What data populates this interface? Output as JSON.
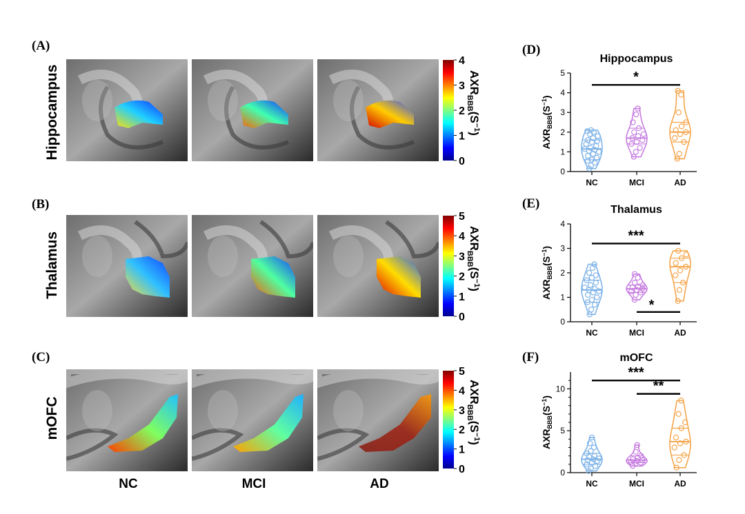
{
  "panels": {
    "A": "(A)",
    "B": "(B)",
    "C": "(C)",
    "D": "(D)",
    "E": "(E)",
    "F": "(F)"
  },
  "rows": [
    "Hippocampus",
    "Thalamus",
    "mOFC"
  ],
  "columns": [
    "NC",
    "MCI",
    "AD"
  ],
  "colorbar": {
    "label": "AXR",
    "subscript": "BBB",
    "unit_open": "(S",
    "unit_sup": "−1",
    "unit_close": ")",
    "colormap": "jet",
    "ticks_A": [
      "0",
      "1",
      "2",
      "3",
      "4"
    ],
    "ticks_B": [
      "0",
      "1",
      "2",
      "3",
      "4",
      "5"
    ],
    "ticks_C": [
      "0",
      "1",
      "2",
      "3",
      "4",
      "5"
    ]
  },
  "colors": {
    "NC": "#7fb3e8",
    "MCI": "#c77ee0",
    "AD": "#f5a54a"
  },
  "chart_data": [
    {
      "type": "violin",
      "title": "Hippocampus",
      "ylabel": "AXR_BBB(S^-1)",
      "categories": [
        "NC",
        "MCI",
        "AD"
      ],
      "ylim": [
        0,
        5
      ],
      "yticks": [
        0,
        1,
        2,
        3,
        4,
        5
      ],
      "series": [
        {
          "name": "NC",
          "median": 1.15,
          "q1": 0.6,
          "q3": 1.6,
          "min": 0.15,
          "max": 2.1,
          "points": [
            0.15,
            0.3,
            0.45,
            0.55,
            0.6,
            0.7,
            0.8,
            0.9,
            1.0,
            1.05,
            1.1,
            1.15,
            1.2,
            1.3,
            1.4,
            1.5,
            1.55,
            1.6,
            1.7,
            1.8,
            1.9,
            2.0,
            2.05,
            2.1
          ]
        },
        {
          "name": "MCI",
          "median": 1.7,
          "q1": 1.4,
          "q3": 2.2,
          "min": 0.75,
          "max": 3.2,
          "points": [
            0.75,
            1.0,
            1.2,
            1.4,
            1.5,
            1.6,
            1.7,
            1.8,
            1.9,
            2.0,
            2.2,
            2.5,
            2.9,
            3.2
          ]
        },
        {
          "name": "AD",
          "median": 2.0,
          "q1": 1.5,
          "q3": 2.5,
          "min": 0.65,
          "max": 4.1,
          "points": [
            0.65,
            0.9,
            1.5,
            1.7,
            1.9,
            2.0,
            2.1,
            2.3,
            2.5,
            3.0,
            3.9,
            4.1
          ]
        }
      ],
      "significance": [
        {
          "from": "NC",
          "to": "AD",
          "label": "*",
          "y": 4.4
        }
      ]
    },
    {
      "type": "violin",
      "title": "Thalamus",
      "ylabel": "AXR_BBB(S^-1)",
      "categories": [
        "NC",
        "MCI",
        "AD"
      ],
      "ylim": [
        0,
        4
      ],
      "yticks": [
        0,
        1,
        2,
        3,
        4
      ],
      "series": [
        {
          "name": "NC",
          "median": 1.3,
          "q1": 0.8,
          "q3": 1.7,
          "min": 0.3,
          "max": 2.35,
          "points": [
            0.3,
            0.5,
            0.7,
            0.8,
            0.9,
            1.0,
            1.1,
            1.2,
            1.25,
            1.3,
            1.35,
            1.4,
            1.5,
            1.6,
            1.7,
            1.8,
            1.9,
            2.0,
            2.2,
            2.35
          ]
        },
        {
          "name": "MCI",
          "median": 1.35,
          "q1": 1.2,
          "q3": 1.5,
          "min": 0.9,
          "max": 1.95,
          "points": [
            0.9,
            1.1,
            1.2,
            1.25,
            1.3,
            1.35,
            1.4,
            1.45,
            1.5,
            1.6,
            1.8,
            1.95
          ]
        },
        {
          "name": "AD",
          "median": 2.25,
          "q1": 1.6,
          "q3": 2.6,
          "min": 0.85,
          "max": 2.9,
          "points": [
            0.85,
            1.3,
            1.6,
            1.9,
            2.1,
            2.25,
            2.4,
            2.6,
            2.75,
            2.9
          ]
        }
      ],
      "significance": [
        {
          "from": "NC",
          "to": "AD",
          "label": "***",
          "y": 3.2
        },
        {
          "from": "MCI",
          "to": "AD",
          "label": "*",
          "y": 0.4,
          "label_below": false
        }
      ]
    },
    {
      "type": "violin",
      "title": "mOFC",
      "ylabel": "AXR_BBB(S^-1)",
      "categories": [
        "NC",
        "MCI",
        "AD"
      ],
      "ylim": [
        0,
        12
      ],
      "yticks": [
        0,
        5,
        10
      ],
      "series": [
        {
          "name": "NC",
          "median": 1.6,
          "q1": 1.0,
          "q3": 2.3,
          "min": 0.2,
          "max": 4.2,
          "points": [
            0.2,
            0.5,
            0.8,
            1.0,
            1.2,
            1.4,
            1.5,
            1.6,
            1.7,
            1.9,
            2.0,
            2.3,
            2.6,
            3.0,
            3.5,
            4.2
          ]
        },
        {
          "name": "MCI",
          "median": 1.5,
          "q1": 1.2,
          "q3": 2.0,
          "min": 0.8,
          "max": 3.3,
          "points": [
            0.8,
            1.1,
            1.2,
            1.3,
            1.4,
            1.5,
            1.6,
            1.8,
            2.0,
            2.5,
            3.3
          ]
        },
        {
          "name": "AD",
          "median": 3.7,
          "q1": 2.1,
          "q3": 5.3,
          "min": 0.6,
          "max": 8.6,
          "points": [
            0.6,
            1.5,
            2.1,
            3.0,
            3.5,
            3.7,
            4.2,
            5.3,
            6.0,
            7.0,
            8.6
          ]
        }
      ],
      "significance": [
        {
          "from": "NC",
          "to": "AD",
          "label": "***",
          "y": 11.0
        },
        {
          "from": "MCI",
          "to": "AD",
          "label": "**",
          "y": 9.4
        }
      ]
    }
  ]
}
